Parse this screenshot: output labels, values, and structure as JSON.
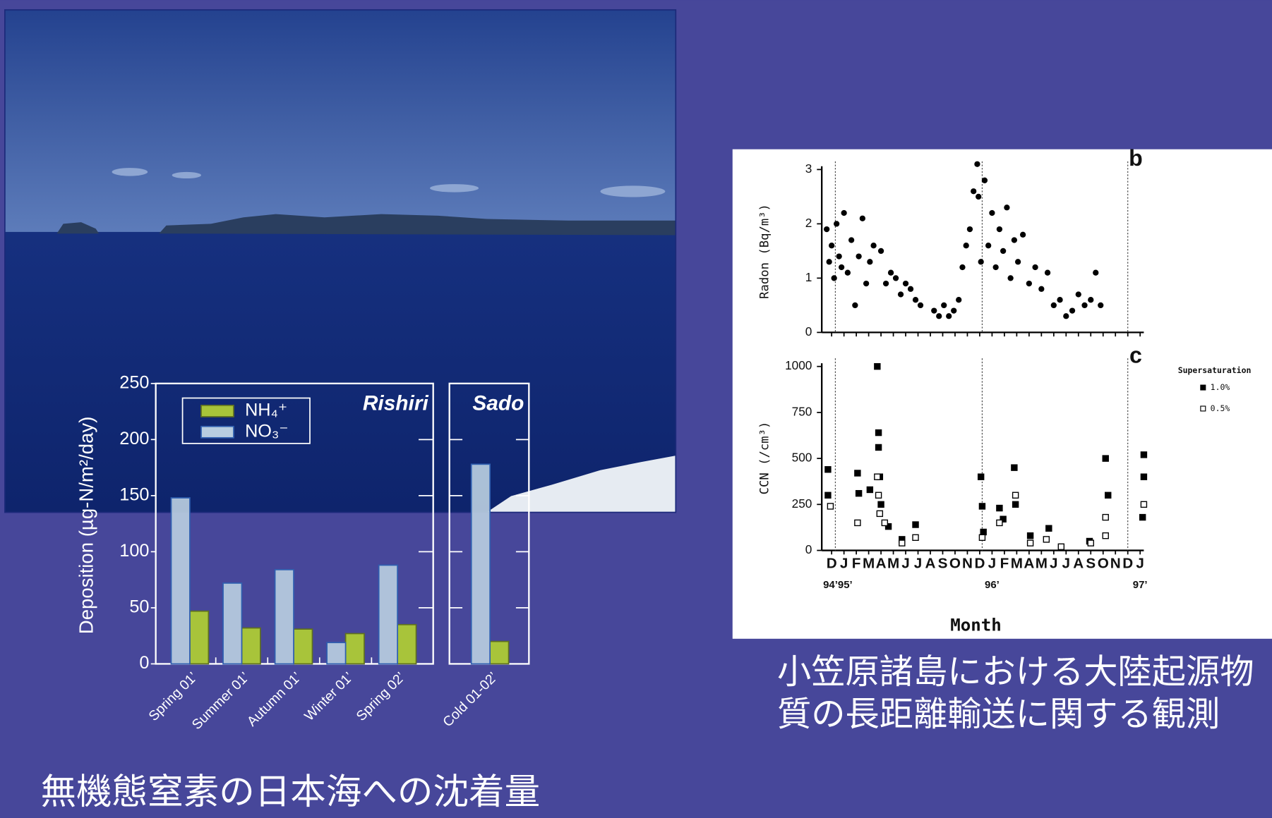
{
  "chart_data": [
    {
      "type": "bar",
      "ylabel": "Deposition (µg-N/m²/day)",
      "caption": "無機態窒素の日本海への沈着量",
      "ylim": [
        0,
        250
      ],
      "yticks": [
        0,
        50,
        100,
        150,
        200,
        250
      ],
      "categories": [
        "Spring 01’",
        "Summer 01’",
        "Autumn 01’",
        "Winter 01’",
        "Spring 02’",
        "Cold 01-02’"
      ],
      "panels": [
        {
          "title": "Rishiri",
          "categories": [
            0,
            1,
            2,
            3,
            4
          ]
        },
        {
          "title": "Sado",
          "categories": [
            5
          ]
        }
      ],
      "legend": "top-left",
      "series": [
        {
          "name": "NH₄⁺",
          "color": "#a8c43a",
          "values": [
            47,
            32,
            31,
            27,
            35,
            20
          ]
        },
        {
          "name": "NO₃⁻",
          "color": "#b8cde0",
          "values": [
            148,
            72,
            84,
            19,
            88,
            178
          ]
        }
      ]
    },
    {
      "type": "scatter",
      "xlabel": "Month",
      "caption_lines": [
        "小笠原諸島における大陸起源物",
        "質の長距離輸送に関する観測"
      ],
      "xlim": [
        -0.8,
        25.3
      ],
      "xticks": [
        {
          "value": 0,
          "label": "D"
        },
        {
          "value": 1,
          "label": "J"
        },
        {
          "value": 2,
          "label": "F"
        },
        {
          "value": 3,
          "label": "M"
        },
        {
          "value": 4,
          "label": "A"
        },
        {
          "value": 5,
          "label": "M"
        },
        {
          "value": 6,
          "label": "J"
        },
        {
          "value": 7,
          "label": "J"
        },
        {
          "value": 8,
          "label": "A"
        },
        {
          "value": 9,
          "label": "S"
        },
        {
          "value": 10,
          "label": "O"
        },
        {
          "value": 11,
          "label": "N"
        },
        {
          "value": 12,
          "label": "D"
        },
        {
          "value": 13,
          "label": "J"
        },
        {
          "value": 14,
          "label": "F"
        },
        {
          "value": 15,
          "label": "M"
        },
        {
          "value": 16,
          "label": "A"
        },
        {
          "value": 17,
          "label": "M"
        },
        {
          "value": 18,
          "label": "J"
        },
        {
          "value": 19,
          "label": "J"
        },
        {
          "value": 20,
          "label": "A"
        },
        {
          "value": 21,
          "label": "S"
        },
        {
          "value": 22,
          "label": "O"
        },
        {
          "value": 23,
          "label": "N"
        },
        {
          "value": 24,
          "label": "D"
        },
        {
          "value": 25,
          "label": "J"
        }
      ],
      "year_ticks": [
        {
          "value": 0.5,
          "label": "94’95’"
        },
        {
          "value": 13,
          "label": "96’"
        },
        {
          "value": 25,
          "label": "97’"
        }
      ],
      "vlines": [
        0.3,
        12.2,
        24
      ],
      "panels": [
        {
          "label": "b",
          "ylabel": "Radon (Bq/m³)",
          "ylim": [
            0,
            3
          ],
          "yticks": [
            0,
            1,
            2,
            3
          ],
          "series": [
            {
              "color": "#000000",
              "marker": "dot",
              "x": [
                -0.4,
                -0.2,
                0,
                0.2,
                0.4,
                0.6,
                0.8,
                1,
                1.3,
                1.6,
                1.9,
                2.2,
                2.5,
                2.8,
                3.1,
                3.4,
                4,
                4.4,
                4.8,
                5.2,
                5.6,
                6,
                6.4,
                6.8,
                7.2,
                8.3,
                8.7,
                9.1,
                9.5,
                9.9,
                10.3,
                10.6,
                10.9,
                11.2,
                11.5,
                11.8,
                11.9,
                12.1,
                12.4,
                12.7,
                13,
                13.3,
                13.6,
                13.9,
                14.2,
                14.5,
                14.8,
                15.1,
                15.5,
                16,
                16.5,
                17,
                17.5,
                18,
                18.5,
                19,
                19.5,
                20,
                20.5,
                21,
                21.4,
                21.8
              ],
              "values": [
                1.9,
                1.3,
                1.6,
                1.0,
                2.0,
                1.4,
                1.2,
                2.2,
                1.1,
                1.7,
                0.5,
                1.4,
                2.1,
                0.9,
                1.3,
                1.6,
                1.5,
                0.9,
                1.1,
                1.0,
                0.7,
                0.9,
                0.8,
                0.6,
                0.5,
                0.4,
                0.3,
                0.5,
                0.3,
                0.4,
                0.6,
                1.2,
                1.6,
                1.9,
                2.6,
                3.1,
                2.5,
                1.3,
                2.8,
                1.6,
                2.2,
                1.2,
                1.9,
                1.5,
                2.3,
                1.0,
                1.7,
                1.3,
                1.8,
                0.9,
                1.2,
                0.8,
                1.1,
                0.5,
                0.6,
                0.3,
                0.4,
                0.7,
                0.5,
                0.6,
                1.1,
                0.5
              ]
            }
          ]
        },
        {
          "label": "c",
          "ylabel": "CCN (/cm³)",
          "ylim": [
            0,
            1000
          ],
          "yticks": [
            0,
            250,
            500,
            750,
            1000
          ],
          "legend_title": "Supersaturation",
          "series": [
            {
              "name": "1.0%",
              "color": "#000000",
              "marker": "filled",
              "x": [
                -0.3,
                -0.3,
                2.1,
                2.2,
                3.1,
                3.7,
                3.8,
                3.8,
                3.9,
                4.0,
                4.6,
                5.7,
                6.8,
                12.1,
                12.2,
                12.3,
                13.6,
                13.9,
                14.8,
                14.9,
                16.1,
                17.6,
                20.9,
                22.2,
                22.4,
                25.3,
                25.3,
                25.2
              ],
              "values": [
                440,
                300,
                420,
                310,
                330,
                1000,
                640,
                560,
                400,
                250,
                130,
                60,
                140,
                400,
                240,
                100,
                230,
                170,
                450,
                250,
                80,
                120,
                50,
                500,
                300,
                520,
                400,
                180
              ]
            },
            {
              "name": "0.5%",
              "color": "#000000",
              "marker": "open",
              "x": [
                -0.1,
                2.1,
                3.7,
                3.8,
                3.9,
                4.3,
                5.7,
                6.8,
                12.2,
                13.6,
                14.9,
                16.1,
                17.4,
                18.6,
                21.0,
                22.2,
                22.2,
                25.3
              ],
              "values": [
                240,
                150,
                400,
                300,
                200,
                150,
                40,
                70,
                70,
                150,
                300,
                40,
                60,
                20,
                40,
                180,
                80,
                250
              ]
            }
          ]
        }
      ]
    }
  ]
}
